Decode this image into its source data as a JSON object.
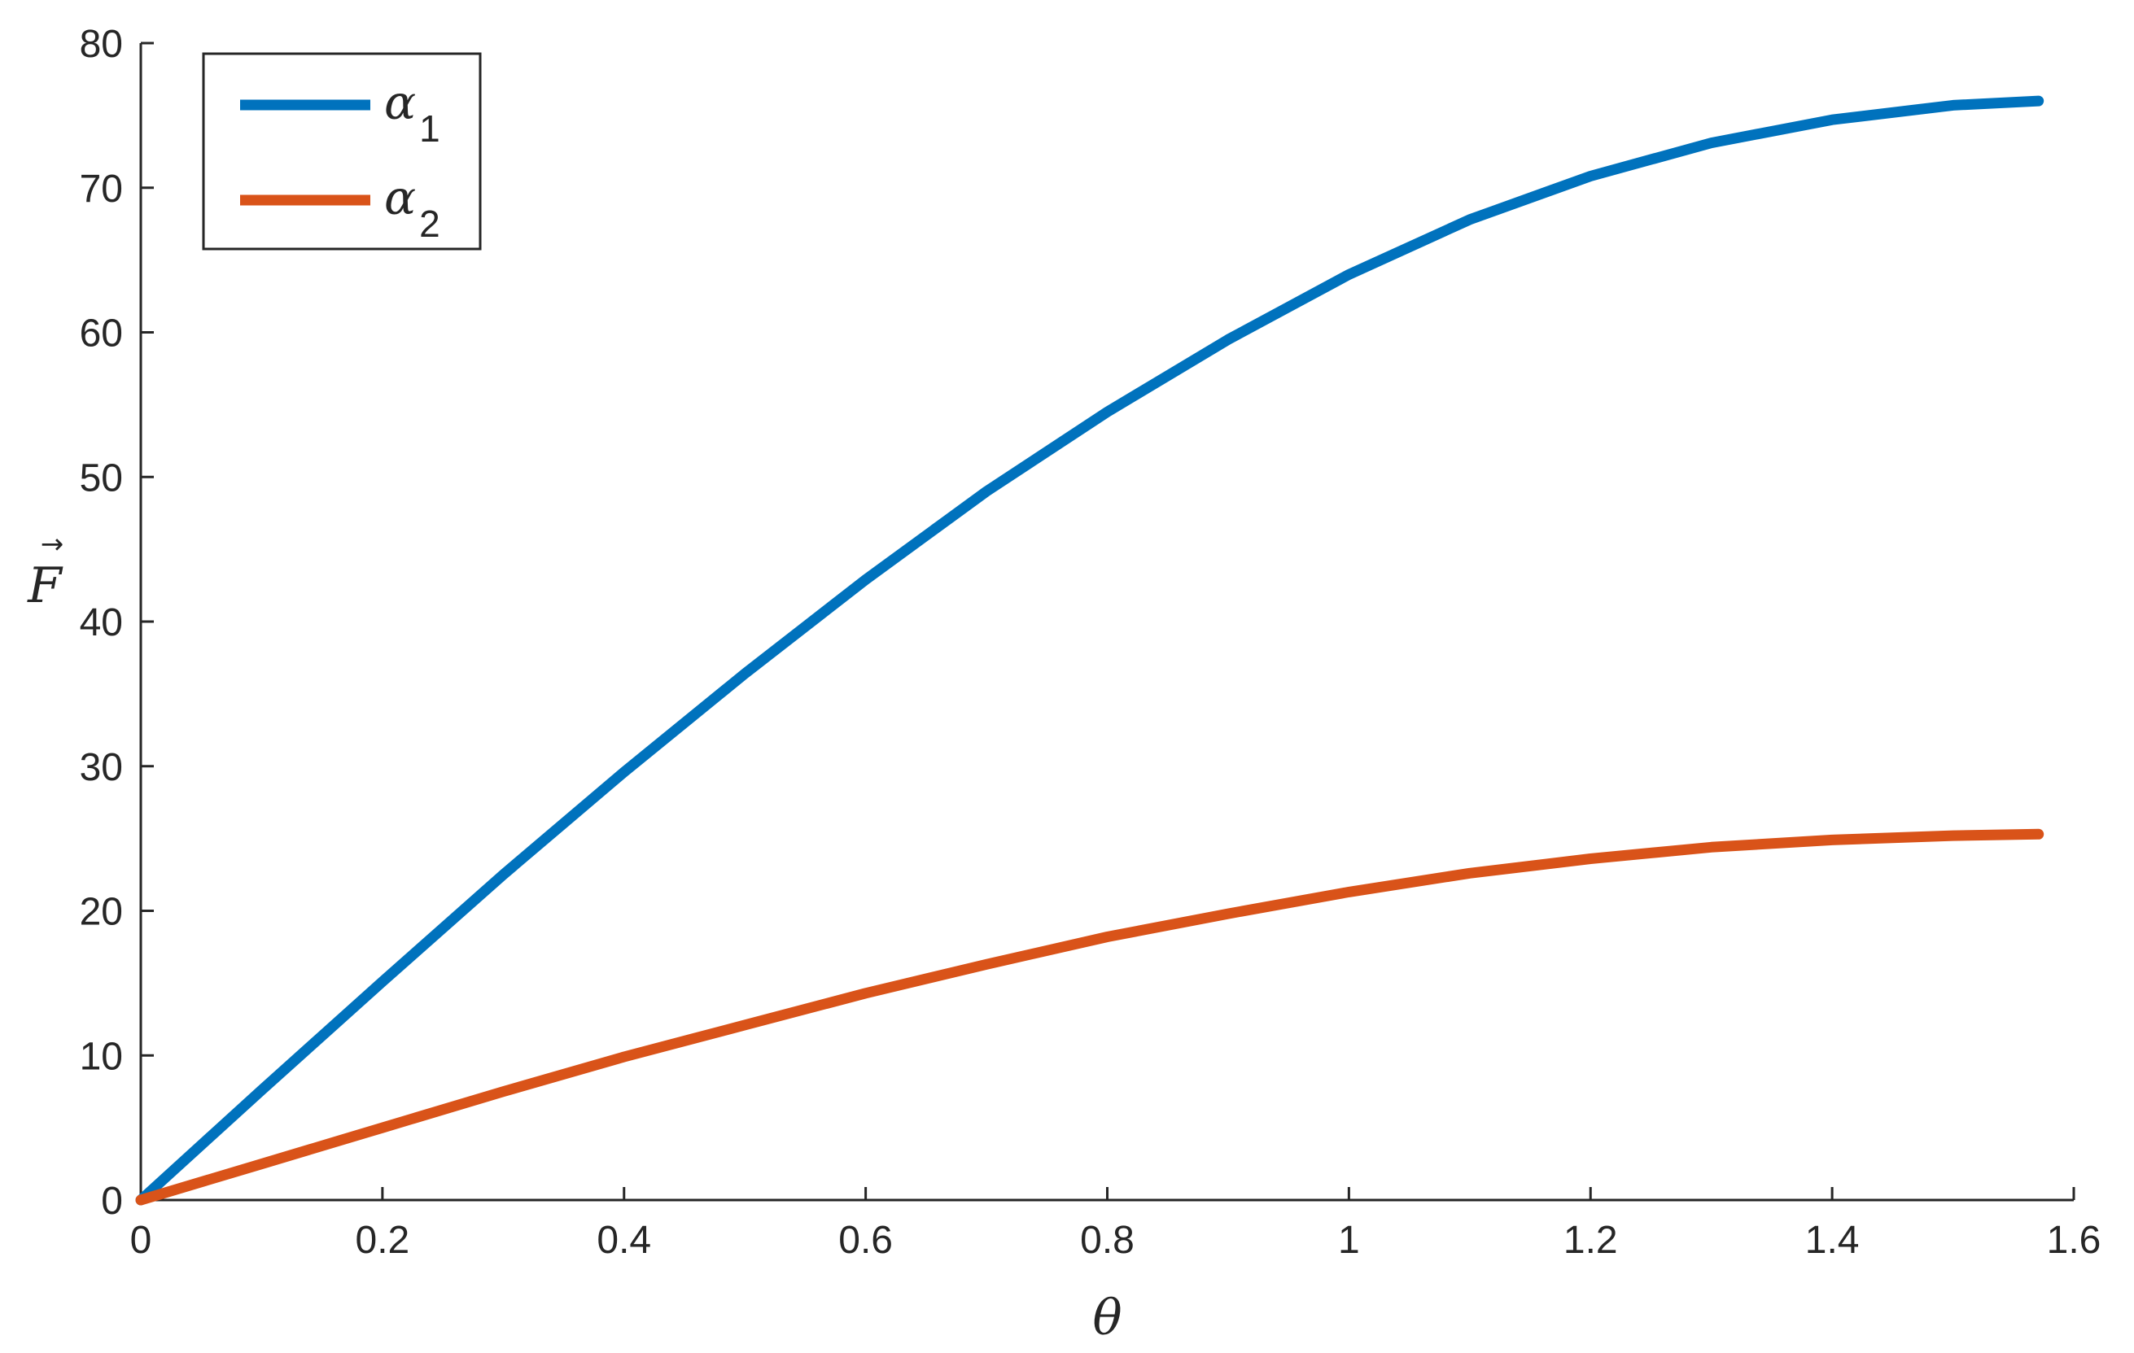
{
  "chart_data": {
    "type": "line",
    "xlabel": "θ",
    "ylabel": "F",
    "ylabel_accent": "→",
    "xlim": [
      0,
      1.6
    ],
    "ylim": [
      0,
      80
    ],
    "xticks": [
      "0",
      "0.2",
      "0.4",
      "0.6",
      "0.8",
      "1",
      "1.2",
      "1.4",
      "1.6"
    ],
    "yticks": [
      "0",
      "10",
      "20",
      "30",
      "40",
      "50",
      "60",
      "70",
      "80"
    ],
    "grid": false,
    "legend_position": "top-left",
    "series": [
      {
        "name": "α",
        "subscript": "1",
        "color": "#0072BD",
        "x": [
          0,
          0.1,
          0.2,
          0.3,
          0.4,
          0.5,
          0.6,
          0.7,
          0.8,
          0.9,
          1.0,
          1.1,
          1.2,
          1.3,
          1.4,
          1.5,
          1.5708
        ],
        "y": [
          0,
          7.6,
          15.1,
          22.5,
          29.6,
          36.4,
          42.9,
          49.0,
          54.5,
          59.5,
          64.0,
          67.8,
          70.8,
          73.1,
          74.7,
          75.7,
          76.0
        ]
      },
      {
        "name": "α",
        "subscript": "2",
        "color": "#D95319",
        "x": [
          0,
          0.1,
          0.2,
          0.3,
          0.4,
          0.5,
          0.6,
          0.7,
          0.8,
          0.9,
          1.0,
          1.1,
          1.2,
          1.3,
          1.4,
          1.5,
          1.5708
        ],
        "y": [
          0,
          2.5,
          5.0,
          7.5,
          9.9,
          12.1,
          14.3,
          16.3,
          18.2,
          19.8,
          21.3,
          22.6,
          23.6,
          24.4,
          24.9,
          25.2,
          25.3
        ]
      }
    ]
  }
}
